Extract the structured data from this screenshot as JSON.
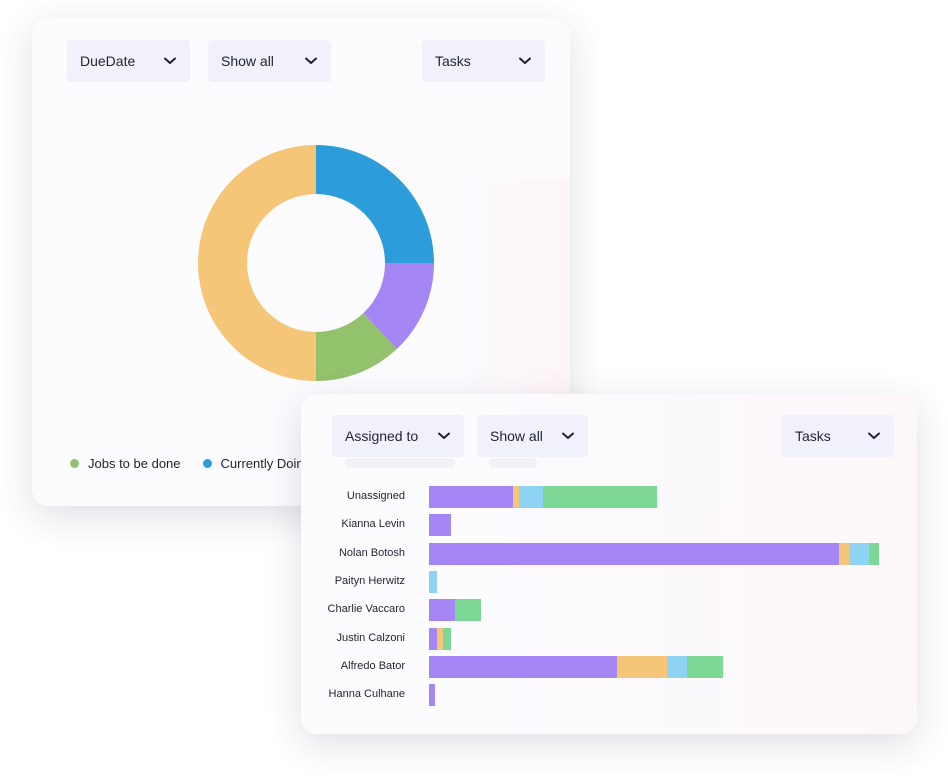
{
  "donut_card": {
    "filters": [
      {
        "name": "duedate-dropdown",
        "label": "DueDate"
      },
      {
        "name": "show-all-dropdown",
        "label": "Show all"
      },
      {
        "name": "tasks-dropdown",
        "label": "Tasks"
      }
    ],
    "legend": [
      {
        "label": "Jobs to be done",
        "color": "#92c26b"
      },
      {
        "label": "Currently Doing",
        "color": "#2d9cdb"
      }
    ]
  },
  "bar_card": {
    "filters": [
      {
        "name": "assigned-to-dropdown",
        "label": "Assigned to"
      },
      {
        "name": "show-all-dropdown-2",
        "label": "Show all"
      },
      {
        "name": "tasks-dropdown-2",
        "label": "Tasks"
      }
    ]
  },
  "colors": {
    "purple": "#a486f5",
    "orange": "#f5c678",
    "light_blue": "#8fd3f4",
    "green": "#7dd895",
    "donut_blue": "#2d9cdb",
    "donut_purple": "#a486f5",
    "donut_green": "#92c26b",
    "donut_orange": "#f5c678"
  },
  "chart_data": [
    {
      "type": "pie",
      "donut": true,
      "slices": [
        {
          "value": 25,
          "color": "#2d9cdb"
        },
        {
          "value": 13,
          "color": "#a486f5"
        },
        {
          "value": 12,
          "color": "#92c26b"
        },
        {
          "value": 50,
          "color": "#f5c678"
        }
      ]
    },
    {
      "type": "bar",
      "orientation": "horizontal",
      "stacked": true,
      "categories": [
        "Unassigned",
        "Kianna Levin",
        "Nolan Botosh",
        "Paityn Herwitz",
        "Charlie Vaccaro",
        "Justin Calzoni",
        "Alfredo Bator",
        "Hanna Culhane"
      ],
      "series": [
        {
          "color": "#a486f5",
          "values": [
            42,
            11,
            205,
            0,
            13,
            4,
            94,
            3
          ]
        },
        {
          "color": "#f5c678",
          "values": [
            3,
            0,
            5,
            0,
            0,
            3,
            25,
            0
          ]
        },
        {
          "color": "#8fd3f4",
          "values": [
            12,
            0,
            10,
            4,
            0,
            0,
            10,
            0
          ]
        },
        {
          "color": "#7dd895",
          "values": [
            57,
            0,
            5,
            0,
            13,
            4,
            18,
            0
          ]
        }
      ],
      "xlim": [
        0,
        225
      ]
    }
  ]
}
